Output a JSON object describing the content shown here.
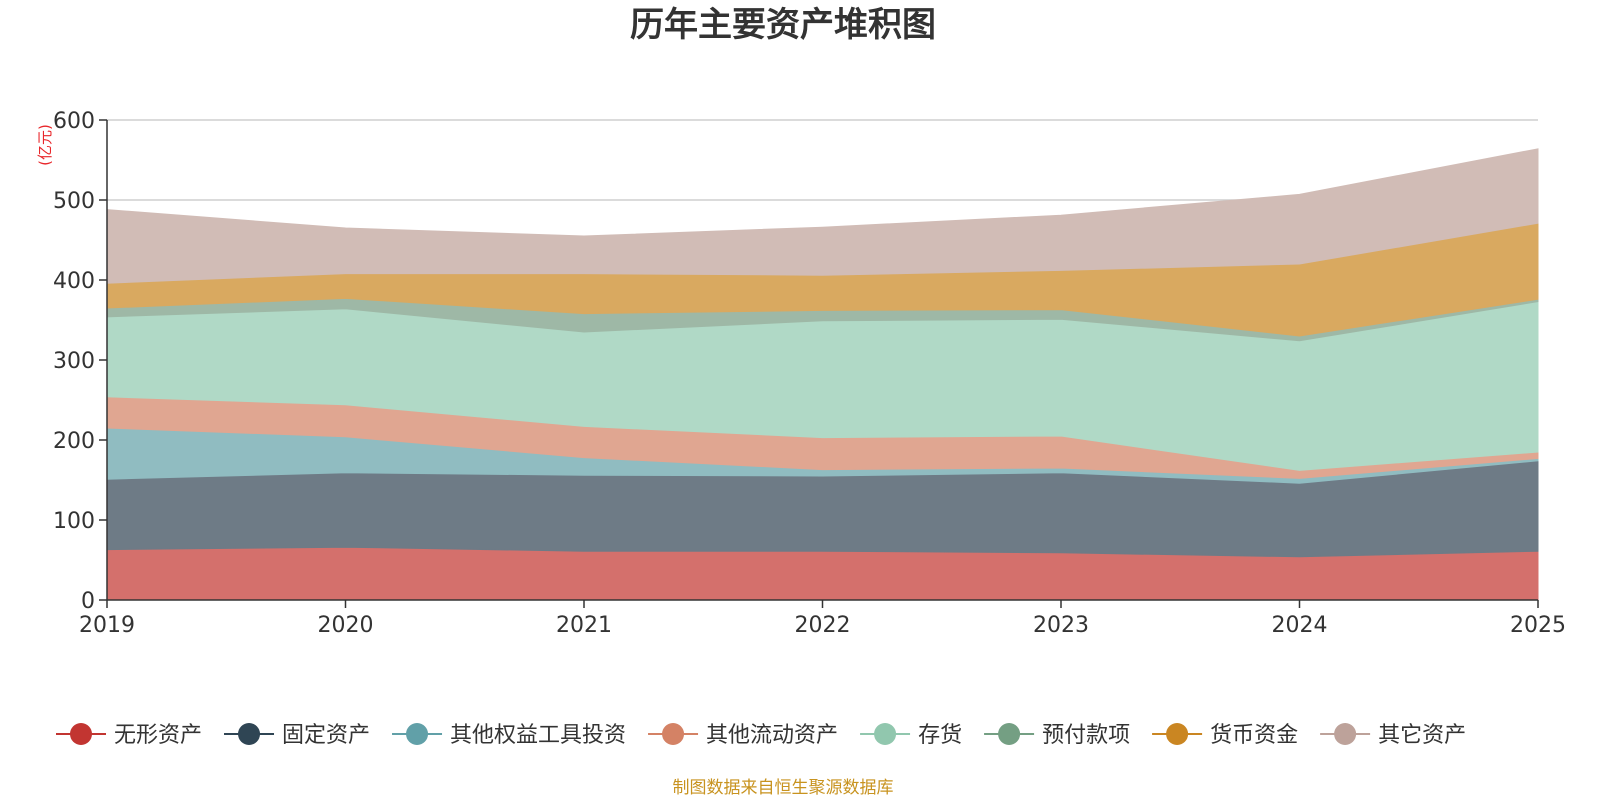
{
  "chart_data": {
    "type": "area",
    "stacked": true,
    "title": "历年主要资产堆积图",
    "unit": "(亿元)",
    "source": "制图数据来自恒生聚源数据库",
    "x": [
      "2019",
      "2020",
      "2021",
      "2022",
      "2023",
      "2024",
      "2025"
    ],
    "ylim": [
      0,
      600
    ],
    "yticks": [
      0,
      100,
      200,
      300,
      400,
      500,
      600
    ],
    "grid": true,
    "legend_position": "bottom",
    "series": [
      {
        "name": "无形资产",
        "color": "#c23531",
        "fill": "#d4706c",
        "values": [
          63,
          66,
          61,
          61,
          59,
          54,
          61
        ]
      },
      {
        "name": "固定资产",
        "color": "#2f4554",
        "fill": "#6e7b86",
        "values": [
          88,
          93,
          95,
          94,
          100,
          92,
          113
        ]
      },
      {
        "name": "其他权益工具投资",
        "color": "#61a0a8",
        "fill": "#90bcc1",
        "values": [
          64,
          45,
          22,
          8,
          6,
          6,
          3
        ]
      },
      {
        "name": "其他流动资产",
        "color": "#d48265",
        "fill": "#e0a691",
        "values": [
          39,
          40,
          39,
          40,
          40,
          10,
          8
        ]
      },
      {
        "name": "存货",
        "color": "#91c7ae",
        "fill": "#b0d9c6",
        "values": [
          100,
          120,
          118,
          146,
          146,
          162,
          188
        ]
      },
      {
        "name": "预付款项",
        "color": "#749f83",
        "fill": "#9eb8a6",
        "values": [
          11,
          13,
          23,
          13,
          12,
          6,
          3
        ]
      },
      {
        "name": "货币资金",
        "color": "#ca8622",
        "fill": "#d9a960",
        "values": [
          31,
          31,
          50,
          44,
          49,
          90,
          95
        ]
      },
      {
        "name": "其它资产",
        "color": "#bda29a",
        "fill": "#d1bcb6",
        "values": [
          92,
          57,
          47,
          60,
          69,
          87,
          93
        ]
      }
    ]
  }
}
